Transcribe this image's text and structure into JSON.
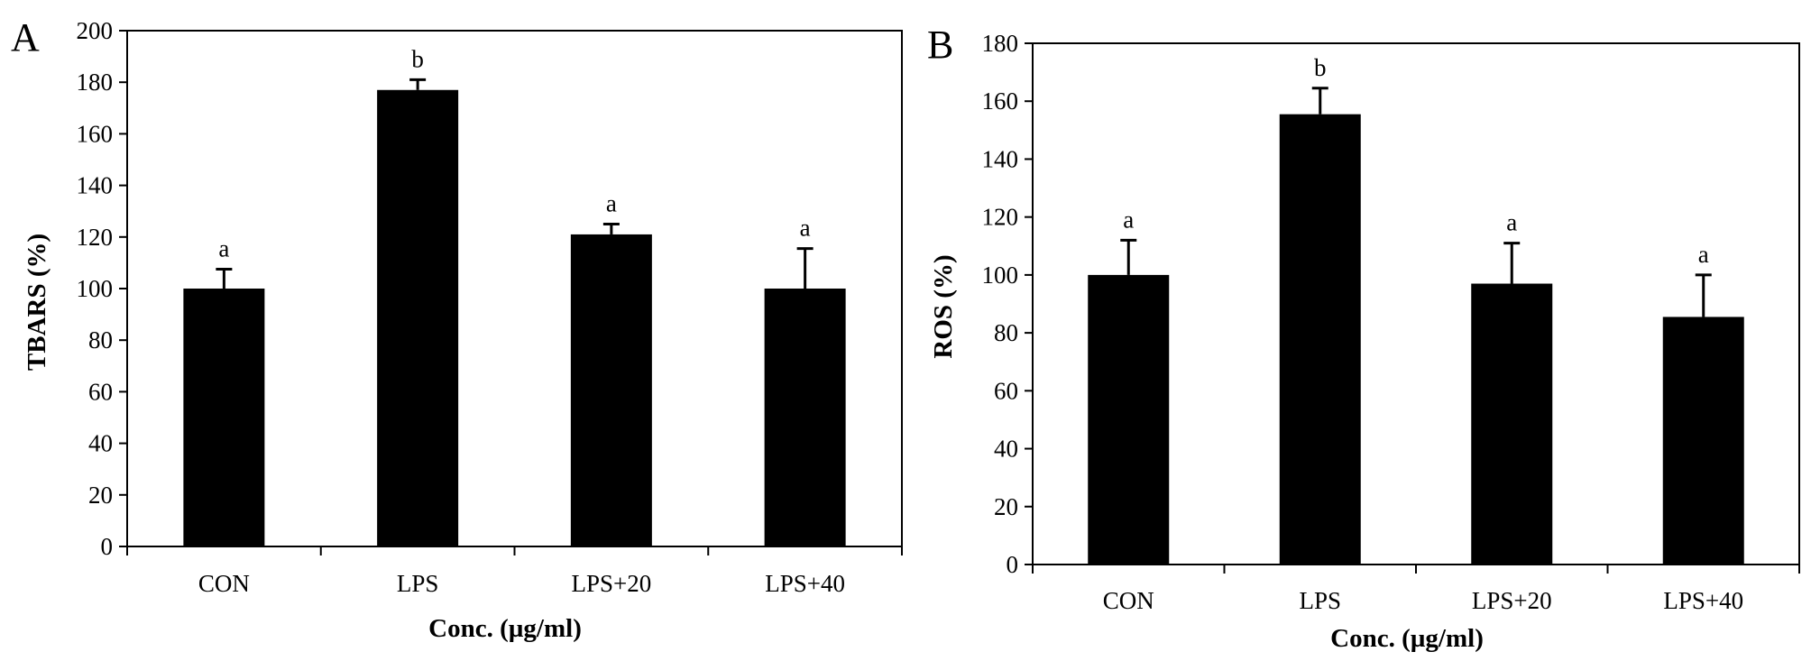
{
  "chart_data": [
    {
      "type": "bar",
      "panel": "A",
      "categories": [
        "CON",
        "LPS",
        "LPS+20",
        "LPS+40"
      ],
      "values": [
        100,
        177,
        121,
        100
      ],
      "errors": [
        7.5,
        4,
        4,
        15.5
      ],
      "significance": [
        "a",
        "b",
        "a",
        "a"
      ],
      "xlabel": "Conc. (µg/ml)",
      "ylabel": "TBARS (%)",
      "ylim": [
        0,
        200
      ],
      "yticks": [
        0,
        20,
        40,
        60,
        80,
        100,
        120,
        140,
        160,
        180,
        200
      ],
      "grid": false,
      "bar_color": "#000000"
    },
    {
      "type": "bar",
      "panel": "B",
      "categories": [
        "CON",
        "LPS",
        "LPS+20",
        "LPS+40"
      ],
      "values": [
        100,
        155.5,
        97,
        85.5
      ],
      "errors": [
        12,
        9,
        14,
        14.5
      ],
      "significance": [
        "a",
        "b",
        "a",
        "a"
      ],
      "xlabel": "Conc. (µg/ml)",
      "ylabel": "ROS (%)",
      "ylim": [
        0,
        180
      ],
      "yticks": [
        0,
        20,
        40,
        60,
        80,
        100,
        120,
        140,
        160,
        180
      ],
      "grid": false,
      "bar_color": "#000000"
    }
  ]
}
